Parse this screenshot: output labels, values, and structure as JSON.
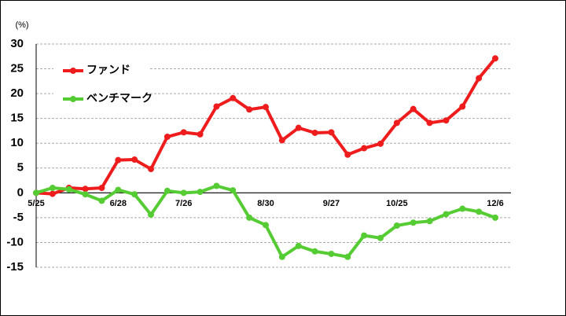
{
  "chart_data": {
    "type": "line",
    "y_label": "(%)",
    "categories": [
      "5/25",
      null,
      null,
      null,
      null,
      "6/28",
      null,
      null,
      null,
      "7/26",
      null,
      null,
      null,
      null,
      "8/30",
      null,
      null,
      null,
      "9/27",
      null,
      null,
      null,
      "10/25",
      null,
      null,
      null,
      null,
      null,
      "12/6"
    ],
    "series": [
      {
        "name": "ファンド",
        "color": "#ee1c1c",
        "values": [
          0,
          -0.2,
          1.0,
          0.8,
          1.0,
          6.6,
          6.7,
          4.8,
          11.3,
          12.2,
          11.8,
          17.4,
          19.1,
          16.8,
          17.3,
          10.6,
          13.1,
          12.1,
          12.2,
          7.7,
          9.0,
          9.9,
          14.1,
          16.9,
          14.1,
          14.6,
          17.4,
          23.1,
          27.1
        ]
      },
      {
        "name": "ベンチマーク",
        "color": "#55cc33",
        "values": [
          0,
          1.0,
          0.7,
          -0.3,
          -1.6,
          0.6,
          -0.3,
          -4.4,
          0.4,
          0.0,
          0.2,
          1.4,
          0.5,
          -5.0,
          -6.5,
          -12.9,
          -10.7,
          -11.8,
          -12.3,
          -12.9,
          -8.6,
          -9.1,
          -6.6,
          -6.0,
          -5.7,
          -4.3,
          -3.2,
          -3.8,
          -5.0
        ]
      }
    ],
    "ylim": [
      -15,
      30
    ],
    "yticks": [
      -15,
      -10,
      -5,
      0,
      5,
      10,
      15,
      20,
      25,
      30
    ],
    "grid": true,
    "legend": "upper left"
  }
}
